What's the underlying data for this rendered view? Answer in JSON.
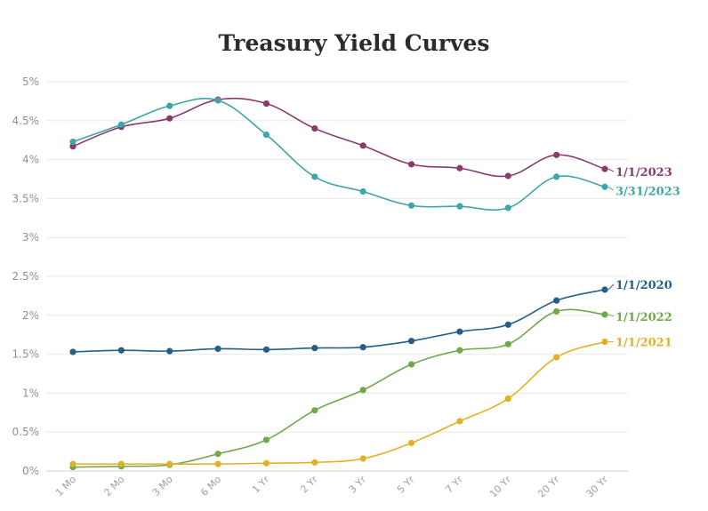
{
  "chart_data": {
    "type": "line",
    "title": "Treasury Yield Curves",
    "xlabel": "",
    "ylabel": "",
    "categories": [
      "1 Mo",
      "2 Mo",
      "3 Mo",
      "6 Mo",
      "1 Yr",
      "2 Yr",
      "3 Yr",
      "5 Yr",
      "7 Yr",
      "10 Yr",
      "20 Yr",
      "30 Yr"
    ],
    "ylim": [
      0,
      5
    ],
    "yticks": [
      {
        "value": 0,
        "label": "0%"
      },
      {
        "value": 0.5,
        "label": "0.5%"
      },
      {
        "value": 1,
        "label": "1%"
      },
      {
        "value": 1.5,
        "label": "1.5%"
      },
      {
        "value": 2,
        "label": "2%"
      },
      {
        "value": 2.5,
        "label": "2.5%"
      },
      {
        "value": 3,
        "label": "3%"
      },
      {
        "value": 3.5,
        "label": "3.5%"
      },
      {
        "value": 4,
        "label": "4%"
      },
      {
        "value": 4.5,
        "label": "4.5%"
      },
      {
        "value": 5,
        "label": "5%"
      }
    ],
    "grid": true,
    "legend": "end-of-line labels",
    "series": [
      {
        "name": "1/1/2023",
        "color": "#8b3a6e",
        "values": [
          4.17,
          4.42,
          4.53,
          4.77,
          4.72,
          4.4,
          4.18,
          3.94,
          3.89,
          3.79,
          4.06,
          3.88
        ]
      },
      {
        "name": "3/31/2023",
        "color": "#3fa6a6",
        "values": [
          4.23,
          4.45,
          4.69,
          4.76,
          4.32,
          3.78,
          3.59,
          3.41,
          3.4,
          3.38,
          3.78,
          3.65
        ]
      },
      {
        "name": "1/1/2020",
        "color": "#235f86",
        "values": [
          1.53,
          1.55,
          1.54,
          1.57,
          1.56,
          1.58,
          1.59,
          1.67,
          1.79,
          1.88,
          2.19,
          2.33
        ]
      },
      {
        "name": "1/1/2022",
        "color": "#6ea94a",
        "values": [
          0.05,
          0.06,
          0.08,
          0.22,
          0.4,
          0.78,
          1.04,
          1.37,
          1.55,
          1.63,
          2.05,
          2.01
        ]
      },
      {
        "name": "1/1/2021",
        "color": "#e4b023",
        "values": [
          0.09,
          0.09,
          0.09,
          0.09,
          0.1,
          0.11,
          0.16,
          0.36,
          0.64,
          0.93,
          1.46,
          1.66
        ]
      }
    ]
  }
}
